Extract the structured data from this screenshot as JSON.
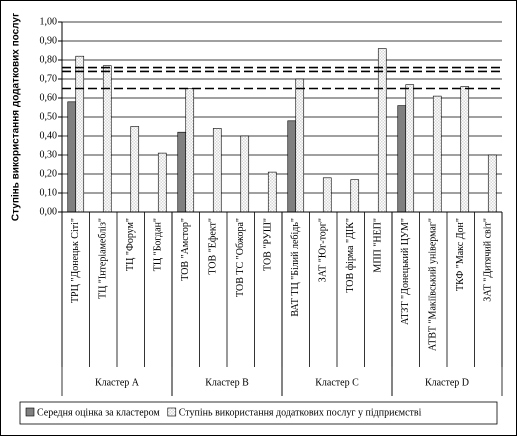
{
  "chart_data": {
    "type": "bar",
    "y_label": "Ступінь використання додаткових послуг",
    "categories": [
      "ТРЦ \"Донецьк Сіті\"",
      "ТЦ \"Інтеріамебліз\"",
      "ТЦ \"Форум\"",
      "ТЦ \"Богдан\"",
      "ТОВ \"Амстор\"",
      "ТОВ \"Ефект\"",
      "ТОВ ТС \"Обжора\"",
      "ТОВ \"РУШ\"",
      "ВАТ ТЦ \"Білий лебідь\"",
      "ЗАТ \"Юг-торг\"",
      "ТОВ фірма \"ДІК\"",
      "МПП \"НЕП\"",
      "АТЗТ \"Донецький ЦУМ\"",
      "АТВТ \"Макіївський універмаг\"",
      "ТКФ \"Макс Дон\"",
      "ЗАТ \"Дитячий світ\""
    ],
    "groups": [
      {
        "name": "Кластер A",
        "count": 4
      },
      {
        "name": "Кластер B",
        "count": 4
      },
      {
        "name": "Кластер C",
        "count": 4
      },
      {
        "name": "Кластер D",
        "count": 4
      }
    ],
    "series": [
      {
        "name": "Середня оцінка за кластером",
        "color": "#808080",
        "values": [
          0.58,
          null,
          null,
          null,
          0.42,
          null,
          null,
          null,
          0.48,
          null,
          null,
          null,
          0.56,
          null,
          null,
          null
        ]
      },
      {
        "name": "Ступінь використання додаткових послуг у підприємстві",
        "color": "#d8d8d8",
        "pattern": true,
        "values": [
          0.82,
          0.77,
          0.45,
          0.31,
          0.65,
          0.44,
          0.4,
          0.21,
          0.7,
          0.18,
          0.17,
          0.86,
          0.67,
          0.61,
          0.66,
          0.3
        ]
      }
    ],
    "reference_lines": [
      0.76,
      0.74,
      0.65
    ],
    "ylim": [
      0,
      1
    ],
    "yticks": [
      {
        "value": 0,
        "label": "0,00"
      },
      {
        "value": 0.1,
        "label": "0,10"
      },
      {
        "value": 0.2,
        "label": "0,20"
      },
      {
        "value": 0.3,
        "label": "0,30"
      },
      {
        "value": 0.4,
        "label": "0,40"
      },
      {
        "value": 0.5,
        "label": "0,50"
      },
      {
        "value": 0.6,
        "label": "0,60"
      },
      {
        "value": 0.7,
        "label": "0,70"
      },
      {
        "value": 0.8,
        "label": "0,80"
      },
      {
        "value": 0.9,
        "label": "0,90"
      },
      {
        "value": 1,
        "label": "1,00"
      }
    ],
    "grid": true
  }
}
